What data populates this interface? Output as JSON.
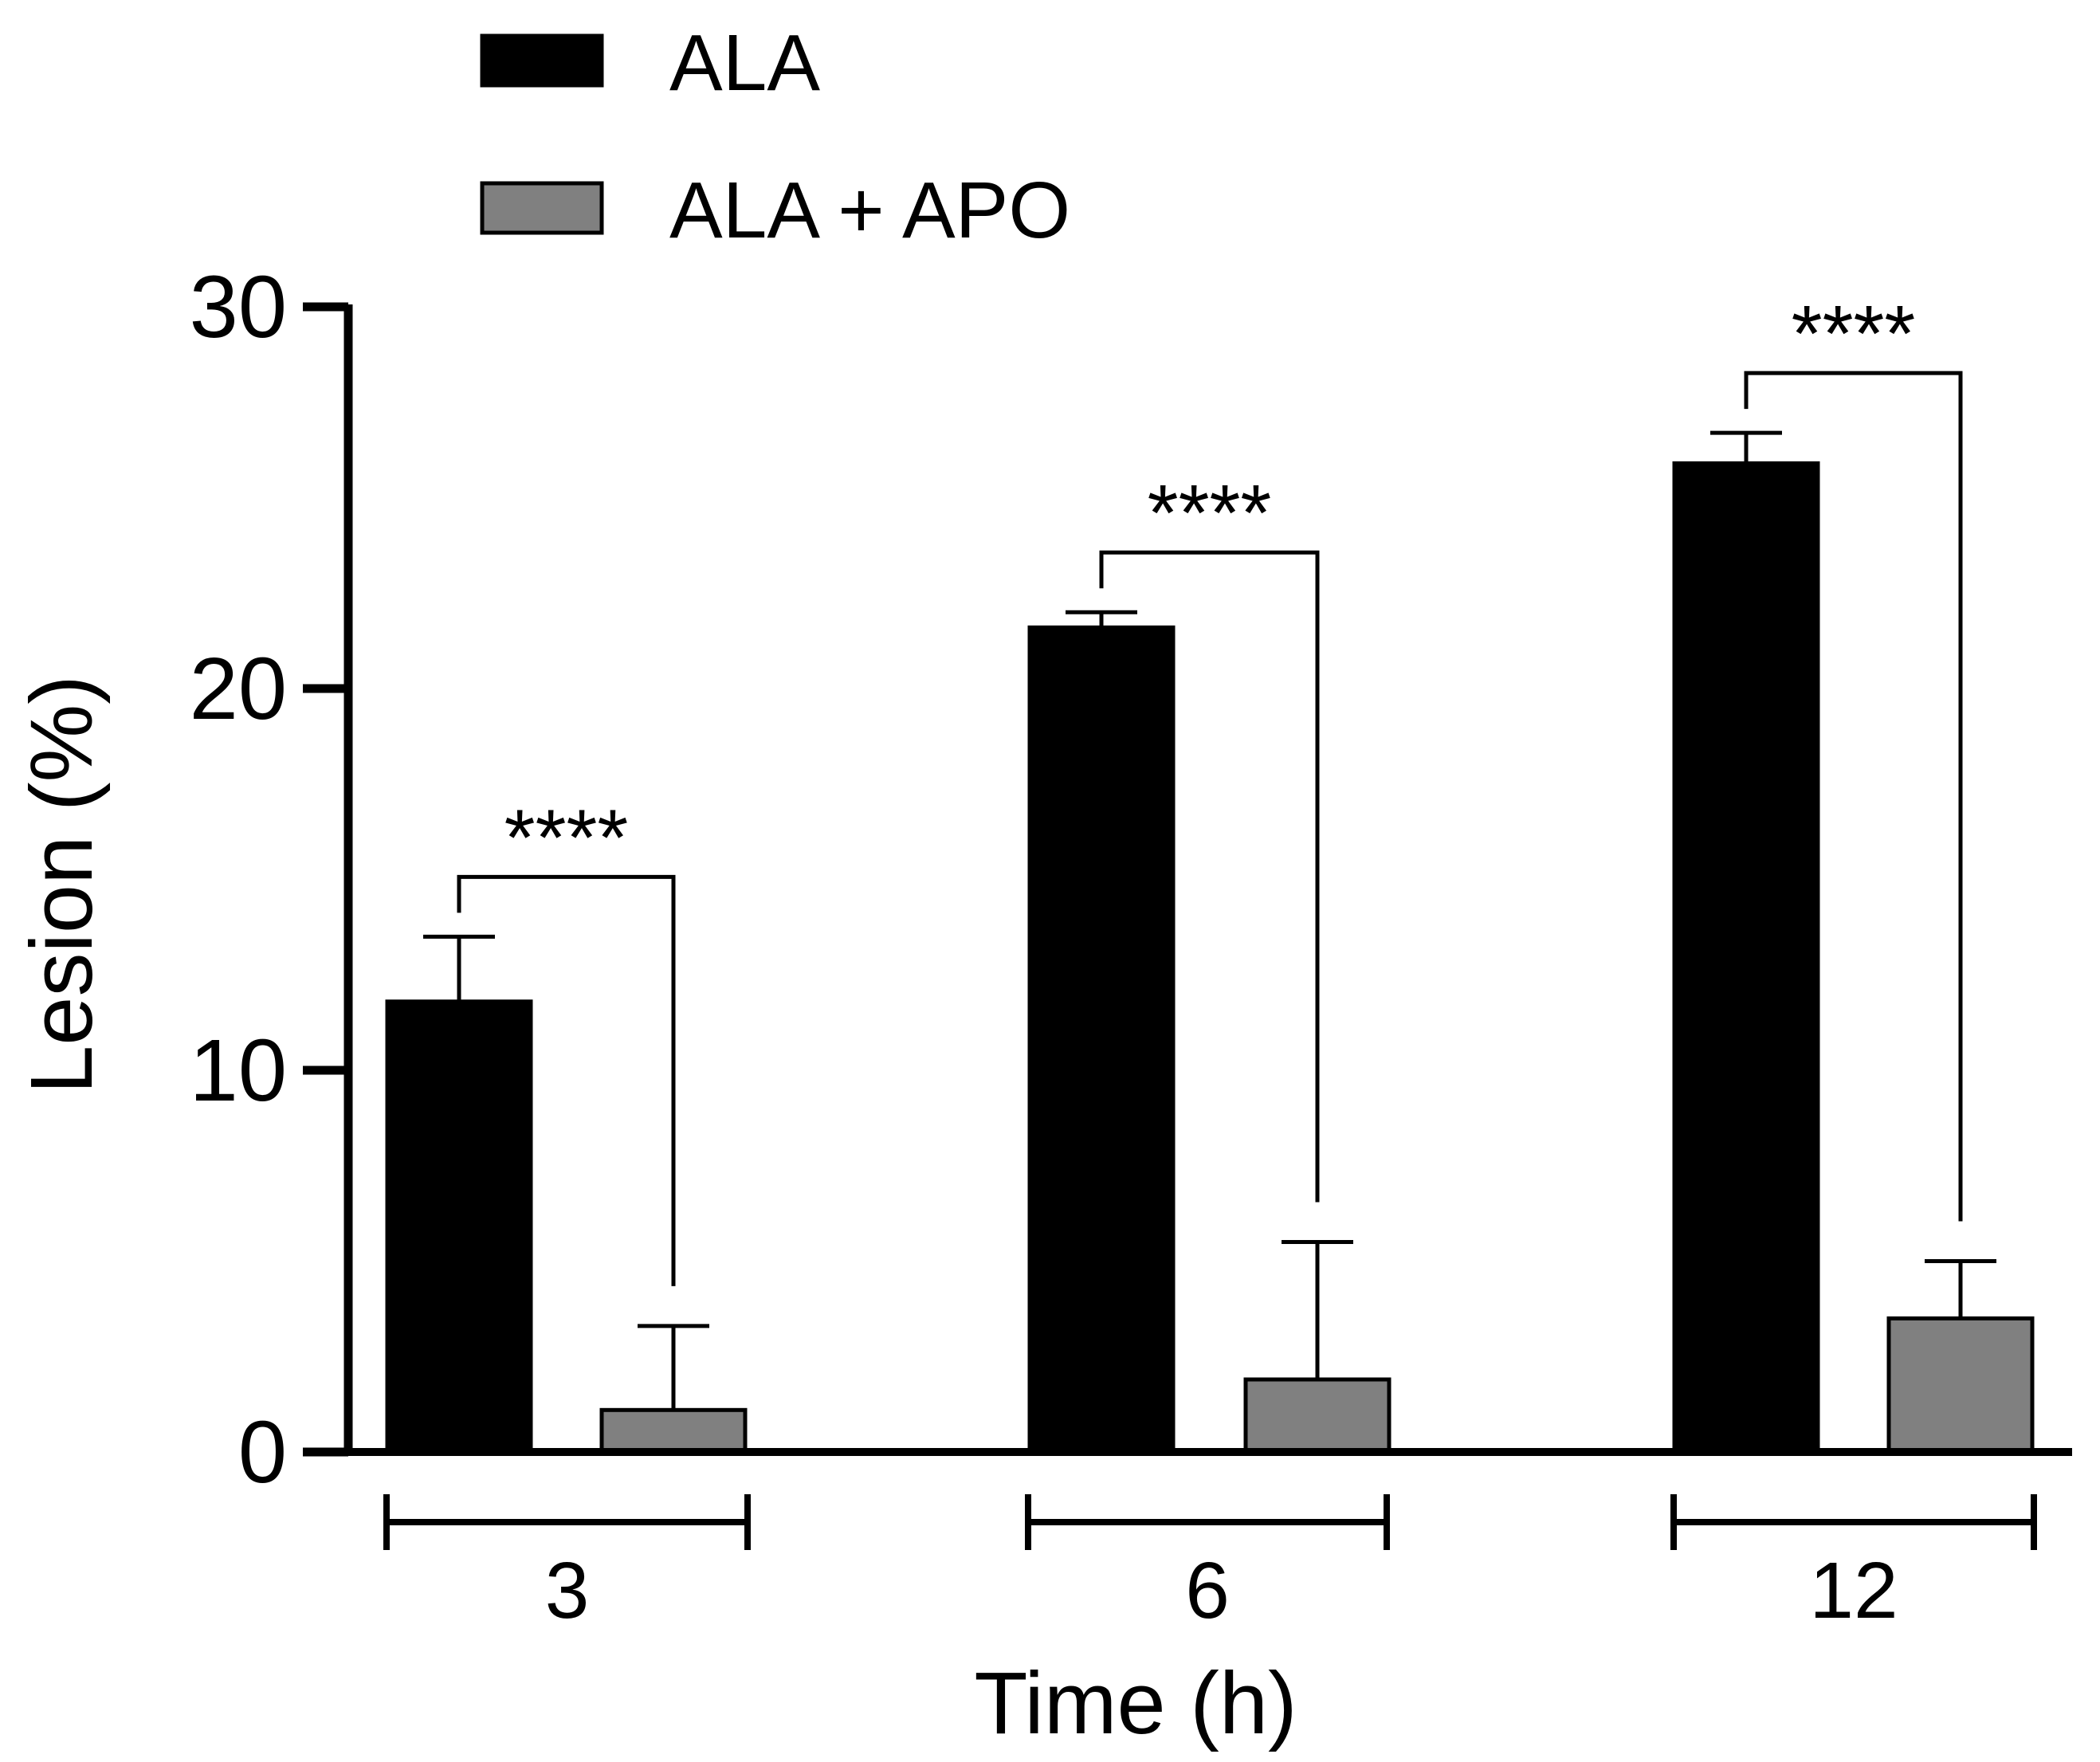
{
  "chart_data": {
    "type": "bar",
    "title": "",
    "xlabel": "Time (h)",
    "ylabel": "Lesion (%)",
    "ylim": [
      0,
      30
    ],
    "yticks": [
      0,
      10,
      20,
      30
    ],
    "grid": false,
    "legend_position": "top-left",
    "categories": [
      "3",
      "6",
      "12"
    ],
    "series": [
      {
        "name": "ALA",
        "color": "#000000",
        "values": [
          11.8,
          21.6,
          25.9
        ],
        "errors": [
          1.7,
          0.4,
          0.8
        ]
      },
      {
        "name": "ALA + APO",
        "color": "#808080",
        "values": [
          1.1,
          1.9,
          3.5
        ],
        "errors": [
          2.2,
          3.6,
          1.5
        ]
      }
    ],
    "annotations": [
      {
        "category": "3",
        "label": "****"
      },
      {
        "category": "6",
        "label": "****"
      },
      {
        "category": "12",
        "label": "****"
      }
    ]
  }
}
